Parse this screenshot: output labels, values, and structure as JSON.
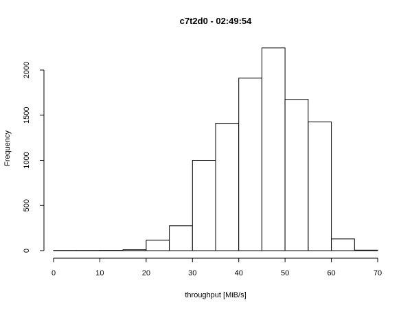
{
  "chart_data": {
    "type": "bar",
    "title": "c7t2d0 - 02:49:54",
    "xlabel": "throughput [MiB/s]",
    "ylabel": "Frequency",
    "bin_edges": [
      0,
      5,
      10,
      15,
      20,
      25,
      30,
      35,
      40,
      45,
      50,
      55,
      60,
      65,
      70
    ],
    "values": [
      2,
      2,
      3,
      10,
      115,
      275,
      1000,
      1410,
      1910,
      2245,
      1675,
      1425,
      130,
      5
    ],
    "xlim": [
      0,
      70
    ],
    "ylim": [
      0,
      2250
    ],
    "x_ticks": [
      0,
      10,
      20,
      30,
      40,
      50,
      60,
      70
    ],
    "y_ticks": [
      0,
      500,
      1000,
      1500,
      2000
    ],
    "grid": false,
    "legend": "none"
  }
}
